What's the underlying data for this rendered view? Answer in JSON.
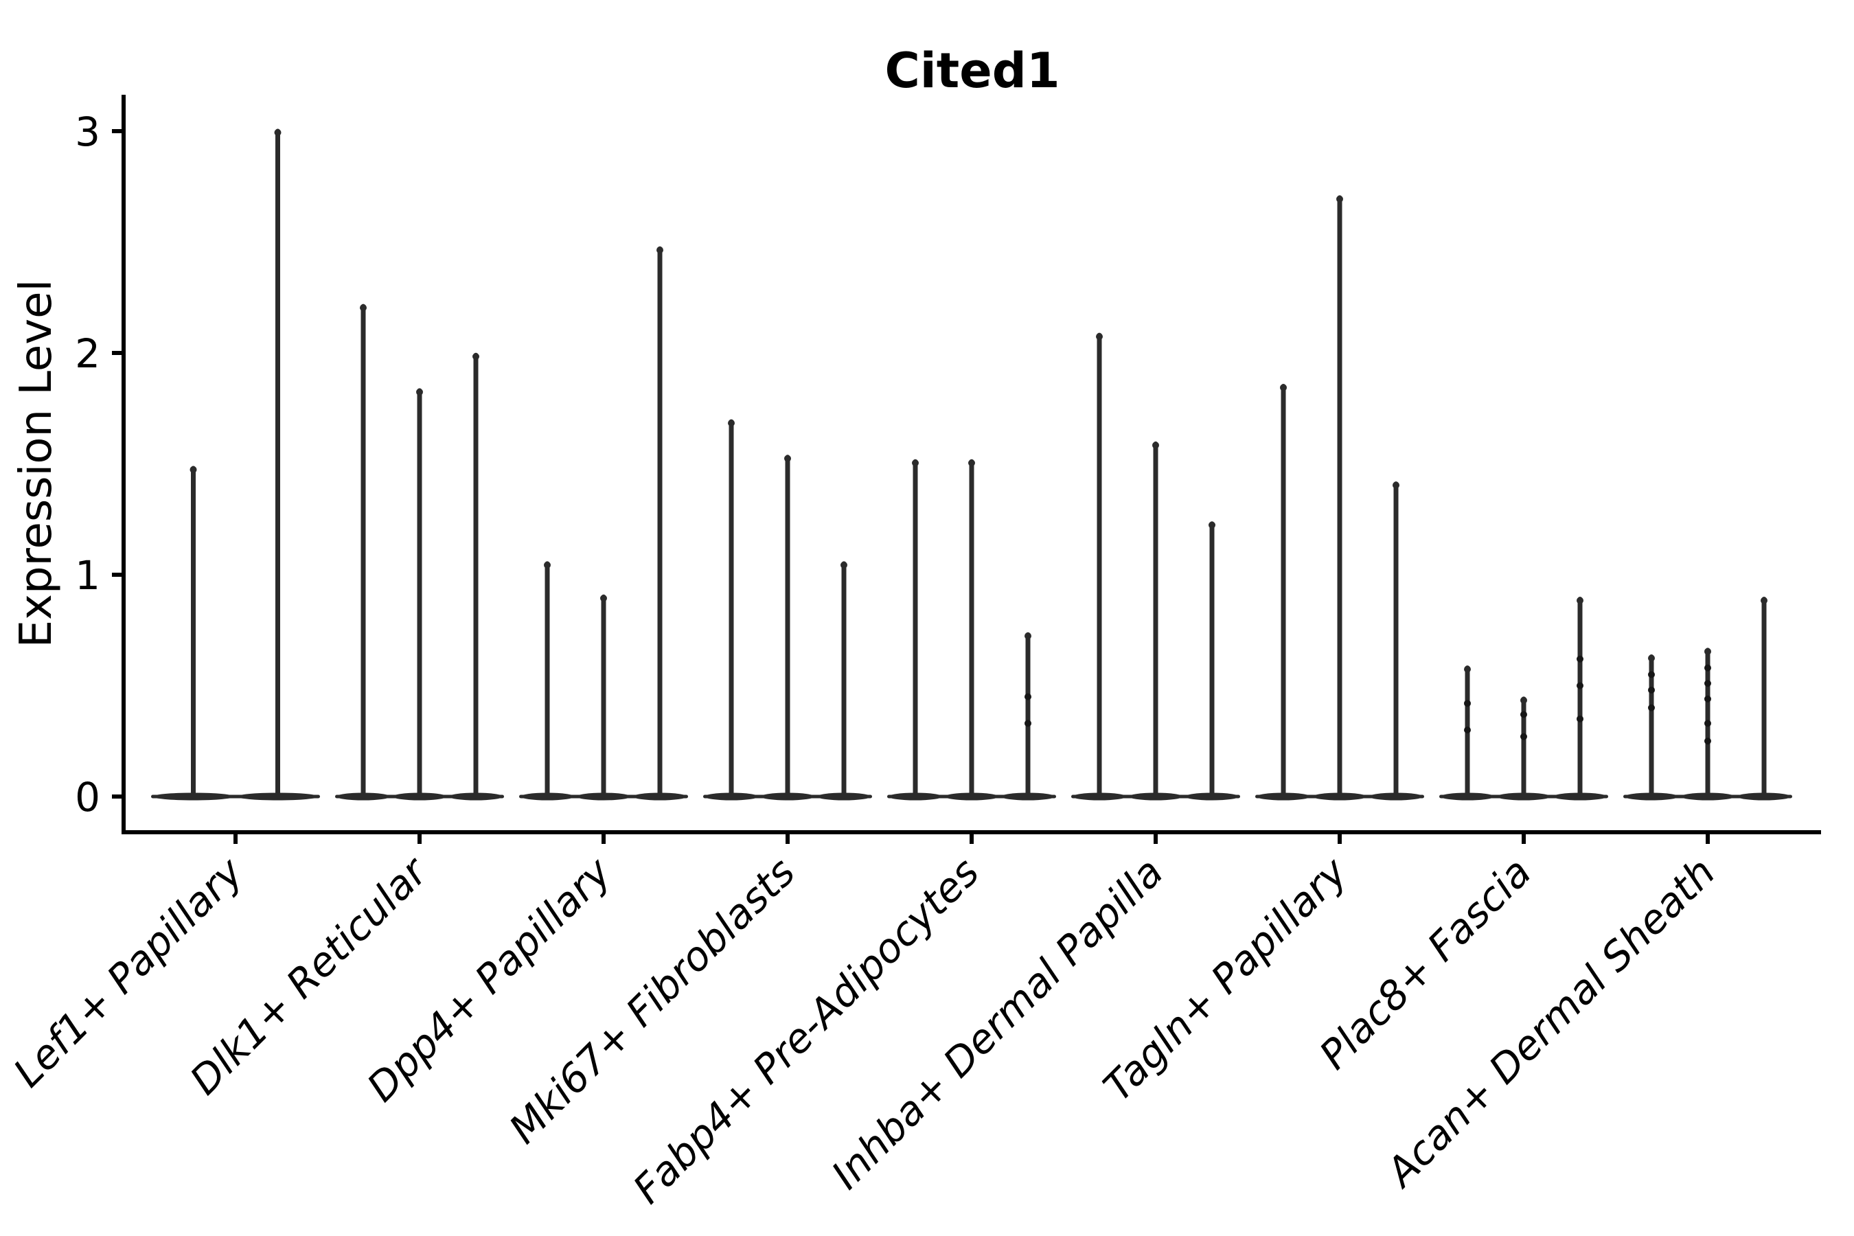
{
  "figure": {
    "background_color": "#ffffff",
    "axis_color": "#000000",
    "violin_color": "#2b2b2b",
    "dot_color": "#161616"
  },
  "chart_data": {
    "type": "violin",
    "title": "Cited1",
    "xlabel": "",
    "ylabel": "Expression Level",
    "ylim": [
      0,
      3.16
    ],
    "yticks": [
      0,
      1,
      2,
      3
    ],
    "grid": false,
    "legend": null,
    "x_tick_rotation_deg": 45,
    "note": "Each violin is collapsed to a thin vertical spike (most cells at 0) with a flat lens-shaped base at y=0; spike height = maximum expression value",
    "categories": [
      {
        "label": "Lef1+ Papillary",
        "violins": [
          {
            "max": 1.48
          },
          {
            "max": 3.0
          }
        ]
      },
      {
        "label": "Dlk1+ Reticular",
        "violins": [
          {
            "max": 2.21
          },
          {
            "max": 1.83
          },
          {
            "max": 1.99
          }
        ]
      },
      {
        "label": "Dpp4+ Papillary",
        "violins": [
          {
            "max": 1.05
          },
          {
            "max": 0.9
          },
          {
            "max": 2.47
          }
        ]
      },
      {
        "label": "Mki67+ Fibroblasts",
        "violins": [
          {
            "max": 1.69
          },
          {
            "max": 1.53
          },
          {
            "max": 1.05
          }
        ]
      },
      {
        "label": "Fabp4+ Pre-Adipocytes",
        "violins": [
          {
            "max": 1.51
          },
          {
            "max": 1.51
          },
          {
            "max": 0.73,
            "dots": [
              0.33,
              0.45
            ]
          }
        ]
      },
      {
        "label": "Inhba+ Dermal Papilla",
        "violins": [
          {
            "max": 2.08
          },
          {
            "max": 1.59
          },
          {
            "max": 1.23
          }
        ]
      },
      {
        "label": "Tagln+ Papillary",
        "violins": [
          {
            "max": 1.85
          },
          {
            "max": 2.7
          },
          {
            "max": 1.41
          }
        ]
      },
      {
        "label": "Plac8+ Fascia",
        "violins": [
          {
            "max": 0.58,
            "dots": [
              0.3,
              0.42
            ]
          },
          {
            "max": 0.44,
            "dots": [
              0.27,
              0.37
            ]
          },
          {
            "max": 0.89,
            "dots": [
              0.35,
              0.5,
              0.62
            ]
          }
        ]
      },
      {
        "label": "Acan+ Dermal Sheath",
        "violins": [
          {
            "max": 0.63,
            "dots": [
              0.4,
              0.48,
              0.55
            ]
          },
          {
            "max": 0.66,
            "dots": [
              0.25,
              0.33,
              0.44,
              0.51,
              0.58
            ]
          },
          {
            "max": 0.89
          }
        ]
      }
    ]
  }
}
